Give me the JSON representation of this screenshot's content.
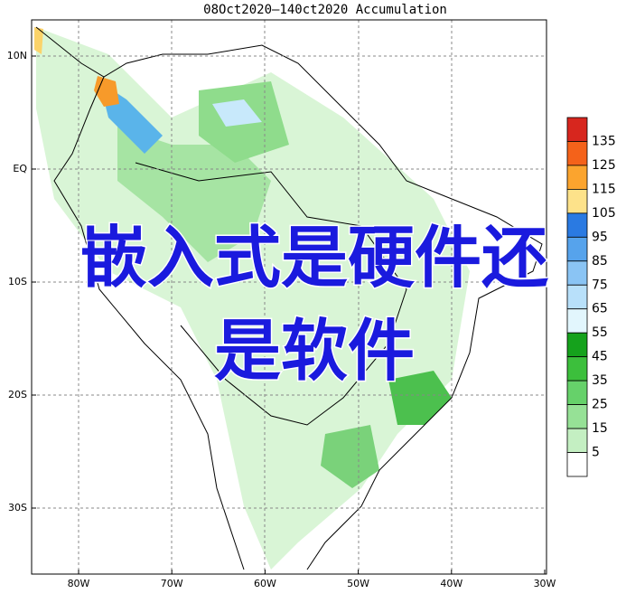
{
  "title": "08Oct2020—140ct2020 Accumulation",
  "lat_labels": [
    "10N",
    "EQ",
    "10S",
    "20S",
    "30S"
  ],
  "lon_labels": [
    "80W",
    "70W",
    "60W",
    "50W",
    "40W",
    "30W"
  ],
  "colorbar": {
    "labels": [
      "135",
      "125",
      "115",
      "105",
      "95",
      "85",
      "75",
      "65",
      "55",
      "45",
      "35",
      "25",
      "15",
      "5"
    ],
    "colors": [
      "#d7261e",
      "#f4621a",
      "#fba42e",
      "#fde28a",
      "#2a7ae2",
      "#56a3ec",
      "#8ac4f4",
      "#b8e0fa",
      "#e2f6fd",
      "#15a21c",
      "#3cbf3c",
      "#66d16a",
      "#96e196",
      "#c4efc2",
      "#ffffff"
    ]
  },
  "overlay": [
    "嵌入式是硬件还",
    "是软件"
  ]
}
